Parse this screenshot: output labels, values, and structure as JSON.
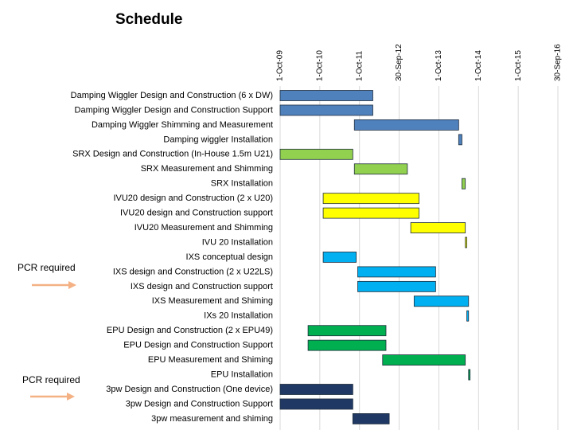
{
  "chart_data": {
    "type": "gantt",
    "title": "Schedule",
    "tasks": [
      "Damping Wiggler Design and Construction (6 x DW)",
      "Damping Wiggler Design and Construction Support",
      "Damping Wiggler Shimming and Measurement",
      "Damping wiggler Installation",
      "SRX Design and Construction (In-House 1.5m U21)",
      "SRX Measurement and Shimming",
      "SRX Installation",
      "IVU20 design and Construction (2 x U20)",
      "IVU20 design and Construction support",
      "IVU20 Measurement and Shimming",
      "IVU 20 Installation",
      "IXS conceptual design",
      "IXS design and Construction (2 x U22LS)",
      "IXS design and Construction support",
      "IXS Measurement and Shiming",
      "IXs 20 Installation",
      "EPU Design and Construction (2 x EPU49)",
      "EPU Design and Construction Support",
      "EPU Measurement and Shiming",
      "EPU Installation",
      "3pw Design and Construction (One device)",
      "3pw Design and Construction Support",
      "3pw measurement and shiming"
    ],
    "start": [
      "2009-10-01",
      "2009-10-01",
      "2011-08-15",
      "2014-04-01",
      "2009-10-01",
      "2011-08-15",
      "2014-05-01",
      "2010-11-01",
      "2010-11-01",
      "2013-01-15",
      "2014-06-01",
      "2010-11-01",
      "2011-09-15",
      "2011-09-15",
      "2013-02-15",
      "2014-06-15",
      "2010-06-15",
      "2010-06-15",
      "2012-05-01",
      "2014-07-01",
      "2009-10-01",
      "2009-10-01",
      "2011-08-01"
    ],
    "end": [
      "2012-02-01",
      "2012-02-01",
      "2014-04-01",
      "2014-05-01",
      "2011-08-01",
      "2012-12-15",
      "2014-06-01",
      "2013-04-01",
      "2013-04-01",
      "2014-06-01",
      "2014-06-15",
      "2011-09-01",
      "2013-09-01",
      "2013-09-01",
      "2014-07-01",
      "2014-07-01",
      "2012-06-01",
      "2012-06-01",
      "2014-06-01",
      "2014-07-15",
      "2011-08-01",
      "2011-08-01",
      "2012-07-01"
    ],
    "colors": [
      "#4f81bd",
      "#4f81bd",
      "#4f81bd",
      "#4f81bd",
      "#92d050",
      "#92d050",
      "#92d050",
      "#ffff00",
      "#ffff00",
      "#ffff00",
      "#ffff00",
      "#00b0f0",
      "#00b0f0",
      "#00b0f0",
      "#00b0f0",
      "#00b0f0",
      "#00b050",
      "#00b050",
      "#00b050",
      "#00b050",
      "#1f3864",
      "#1f3864",
      "#1f3864"
    ],
    "xlim": [
      "2009-10-01",
      "2016-09-30"
    ],
    "xticks": [
      {
        "value": "2009-10-01",
        "label": "1-Oct-09"
      },
      {
        "value": "2010-10-01",
        "label": "1-Oct-10"
      },
      {
        "value": "2011-10-01",
        "label": "1-Oct-11"
      },
      {
        "value": "2012-09-30",
        "label": "30-Sep-12"
      },
      {
        "value": "2013-10-01",
        "label": "1-Oct-13"
      },
      {
        "value": "2014-10-01",
        "label": "1-Oct-14"
      },
      {
        "value": "2015-10-01",
        "label": "1-Oct-15"
      },
      {
        "value": "2016-09-30",
        "label": "30-Sep-16"
      }
    ],
    "grid": true,
    "annotations": [
      {
        "text": "PCR required"
      },
      {
        "text": "PCR required"
      }
    ]
  }
}
